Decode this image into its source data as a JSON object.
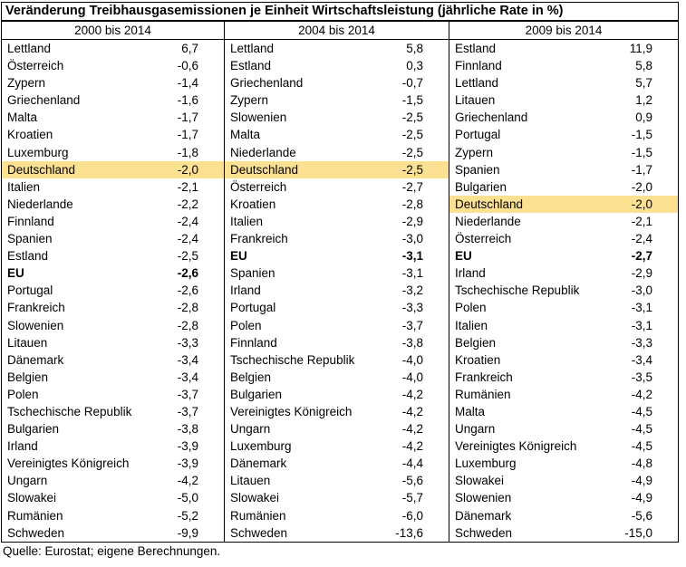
{
  "chart_data": {
    "type": "table",
    "title": "Veränderung Treibhausgasemissionen je Einheit Wirtschaftsleistung (jährliche Rate in %)",
    "source": "Quelle: Eurostat; eigene Berechnungen.",
    "highlight_country": "Deutschland",
    "highlight_color": "#FCE192",
    "bold_label": "EU",
    "columns": [
      {
        "header": "2000 bis 2014",
        "rows": [
          {
            "name": "Lettland",
            "value": "6,7"
          },
          {
            "name": "Österreich",
            "value": "-0,6"
          },
          {
            "name": "Zypern",
            "value": "-1,4"
          },
          {
            "name": "Griechenland",
            "value": "-1,6"
          },
          {
            "name": "Malta",
            "value": "-1,7"
          },
          {
            "name": "Kroatien",
            "value": "-1,7"
          },
          {
            "name": "Luxemburg",
            "value": "-1,8"
          },
          {
            "name": "Deutschland",
            "value": "-2,0"
          },
          {
            "name": "Italien",
            "value": "-2,1"
          },
          {
            "name": "Niederlande",
            "value": "-2,2"
          },
          {
            "name": "Finnland",
            "value": "-2,4"
          },
          {
            "name": "Spanien",
            "value": "-2,4"
          },
          {
            "name": "Estland",
            "value": "-2,5"
          },
          {
            "name": "EU",
            "value": "-2,6"
          },
          {
            "name": "Portugal",
            "value": "-2,6"
          },
          {
            "name": "Frankreich",
            "value": "-2,8"
          },
          {
            "name": "Slowenien",
            "value": "-2,8"
          },
          {
            "name": "Litauen",
            "value": "-3,3"
          },
          {
            "name": "Dänemark",
            "value": "-3,4"
          },
          {
            "name": "Belgien",
            "value": "-3,4"
          },
          {
            "name": "Polen",
            "value": "-3,7"
          },
          {
            "name": "Tschechische Republik",
            "value": "-3,7"
          },
          {
            "name": "Bulgarien",
            "value": "-3,8"
          },
          {
            "name": "Irland",
            "value": "-3,9"
          },
          {
            "name": "Vereinigtes Königreich",
            "value": "-3,9"
          },
          {
            "name": "Ungarn",
            "value": "-4,2"
          },
          {
            "name": "Slowakei",
            "value": "-5,0"
          },
          {
            "name": "Rumänien",
            "value": "-5,2"
          },
          {
            "name": "Schweden",
            "value": "-9,9"
          }
        ]
      },
      {
        "header": "2004 bis 2014",
        "rows": [
          {
            "name": "Lettland",
            "value": "5,8"
          },
          {
            "name": "Estland",
            "value": "0,3"
          },
          {
            "name": "Griechenland",
            "value": "-0,7"
          },
          {
            "name": "Zypern",
            "value": "-1,5"
          },
          {
            "name": "Slowenien",
            "value": "-2,5"
          },
          {
            "name": "Malta",
            "value": "-2,5"
          },
          {
            "name": "Niederlande",
            "value": "-2,5"
          },
          {
            "name": "Deutschland",
            "value": "-2,5"
          },
          {
            "name": "Österreich",
            "value": "-2,7"
          },
          {
            "name": "Kroatien",
            "value": "-2,8"
          },
          {
            "name": "Italien",
            "value": "-2,9"
          },
          {
            "name": "Frankreich",
            "value": "-3,0"
          },
          {
            "name": "EU",
            "value": "-3,1"
          },
          {
            "name": "Spanien",
            "value": "-3,1"
          },
          {
            "name": "Irland",
            "value": "-3,2"
          },
          {
            "name": "Portugal",
            "value": "-3,3"
          },
          {
            "name": "Polen",
            "value": "-3,7"
          },
          {
            "name": "Finnland",
            "value": "-3,8"
          },
          {
            "name": "Tschechische Republik",
            "value": "-4,0"
          },
          {
            "name": "Belgien",
            "value": "-4,0"
          },
          {
            "name": "Bulgarien",
            "value": "-4,2"
          },
          {
            "name": "Vereinigtes Königreich",
            "value": "-4,2"
          },
          {
            "name": "Ungarn",
            "value": "-4,2"
          },
          {
            "name": "Luxemburg",
            "value": "-4,2"
          },
          {
            "name": "Dänemark",
            "value": "-4,4"
          },
          {
            "name": "Litauen",
            "value": "-5,6"
          },
          {
            "name": "Slowakei",
            "value": "-5,7"
          },
          {
            "name": "Rumänien",
            "value": "-6,0"
          },
          {
            "name": "Schweden",
            "value": "-13,6"
          }
        ]
      },
      {
        "header": "2009 bis 2014",
        "rows": [
          {
            "name": "Estland",
            "value": "11,9"
          },
          {
            "name": "Finnland",
            "value": "5,8"
          },
          {
            "name": "Lettland",
            "value": "5,7"
          },
          {
            "name": "Litauen",
            "value": "1,2"
          },
          {
            "name": "Griechenland",
            "value": "0,9"
          },
          {
            "name": "Portugal",
            "value": "-1,5"
          },
          {
            "name": "Zypern",
            "value": "-1,5"
          },
          {
            "name": "Spanien",
            "value": "-1,7"
          },
          {
            "name": "Bulgarien",
            "value": "-2,0"
          },
          {
            "name": "Deutschland",
            "value": "-2,0"
          },
          {
            "name": "Niederlande",
            "value": "-2,1"
          },
          {
            "name": "Österreich",
            "value": "-2,4"
          },
          {
            "name": "EU",
            "value": "-2,7"
          },
          {
            "name": "Irland",
            "value": "-2,9"
          },
          {
            "name": "Tschechische Republik",
            "value": "-3,0"
          },
          {
            "name": "Polen",
            "value": "-3,1"
          },
          {
            "name": "Italien",
            "value": "-3,1"
          },
          {
            "name": "Belgien",
            "value": "-3,3"
          },
          {
            "name": "Kroatien",
            "value": "-3,4"
          },
          {
            "name": "Frankreich",
            "value": "-3,5"
          },
          {
            "name": "Rumänien",
            "value": "-4,2"
          },
          {
            "name": "Malta",
            "value": "-4,5"
          },
          {
            "name": "Ungarn",
            "value": "-4,5"
          },
          {
            "name": "Vereinigtes Königreich",
            "value": "-4,5"
          },
          {
            "name": "Luxemburg",
            "value": "-4,8"
          },
          {
            "name": "Slowakei",
            "value": "-4,9"
          },
          {
            "name": "Slowenien",
            "value": "-4,9"
          },
          {
            "name": "Dänemark",
            "value": "-5,6"
          },
          {
            "name": "Schweden",
            "value": "-15,0"
          }
        ]
      }
    ]
  }
}
